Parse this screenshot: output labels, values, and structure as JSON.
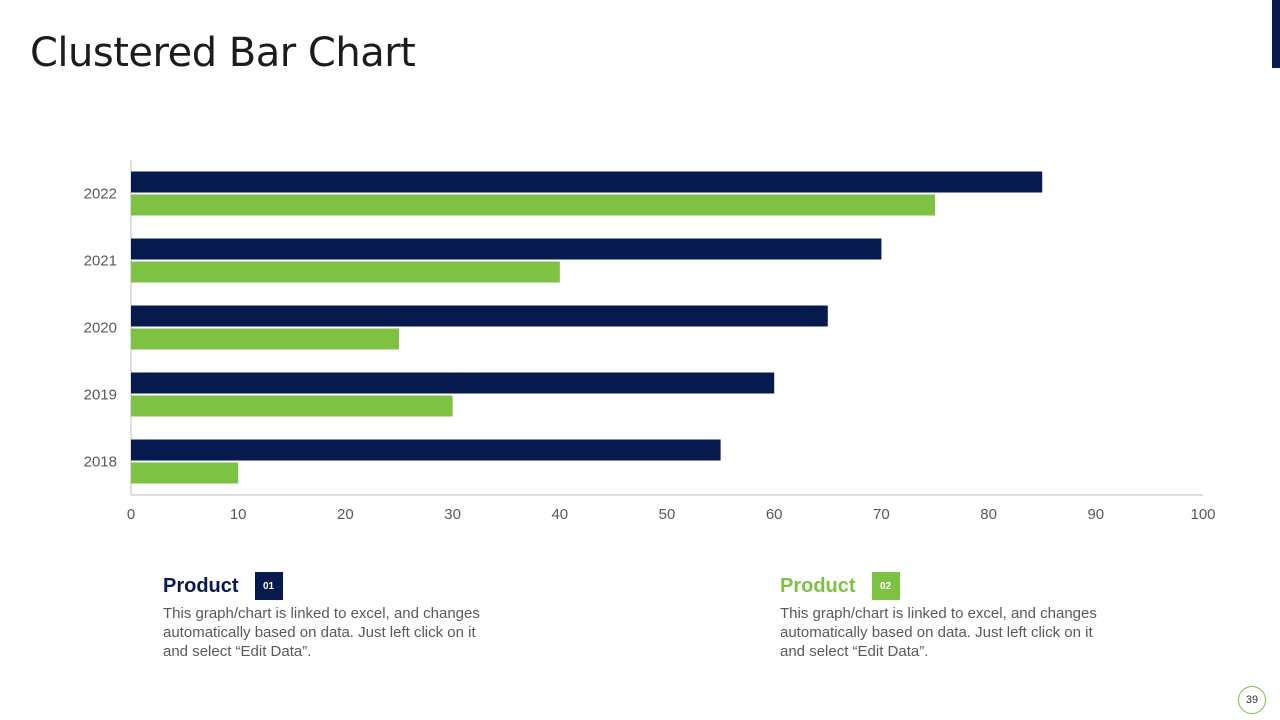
{
  "slide": {
    "title": "Clustered Bar Chart",
    "page_number": "39"
  },
  "colors": {
    "navy": "#061A4E",
    "green": "#7DC242",
    "axis": "#BFBFBF",
    "text": "#595959"
  },
  "chart_data": {
    "type": "bar",
    "orientation": "horizontal",
    "categories": [
      "2018",
      "2019",
      "2020",
      "2021",
      "2022"
    ],
    "series": [
      {
        "name": "Product 01",
        "color": "#061A4E",
        "values": [
          55,
          60,
          65,
          70,
          85
        ]
      },
      {
        "name": "Product 02",
        "color": "#7DC242",
        "values": [
          10,
          30,
          25,
          40,
          75
        ]
      }
    ],
    "xlim": [
      0,
      100
    ],
    "xticks": [
      0,
      10,
      20,
      30,
      40,
      50,
      60,
      70,
      80,
      90,
      100
    ],
    "title": "",
    "xlabel": "",
    "ylabel": "",
    "grid": false,
    "legend": "bottom"
  },
  "legend": [
    {
      "title": "Product",
      "badge": "01",
      "description": "This graph/chart is linked to excel, and changes automatically based on data. Just left click on it and select “Edit Data”."
    },
    {
      "title": "Product",
      "badge": "02",
      "description": "This graph/chart is linked to excel, and changes automatically based on data. Just left click on it and select “Edit Data”."
    }
  ]
}
